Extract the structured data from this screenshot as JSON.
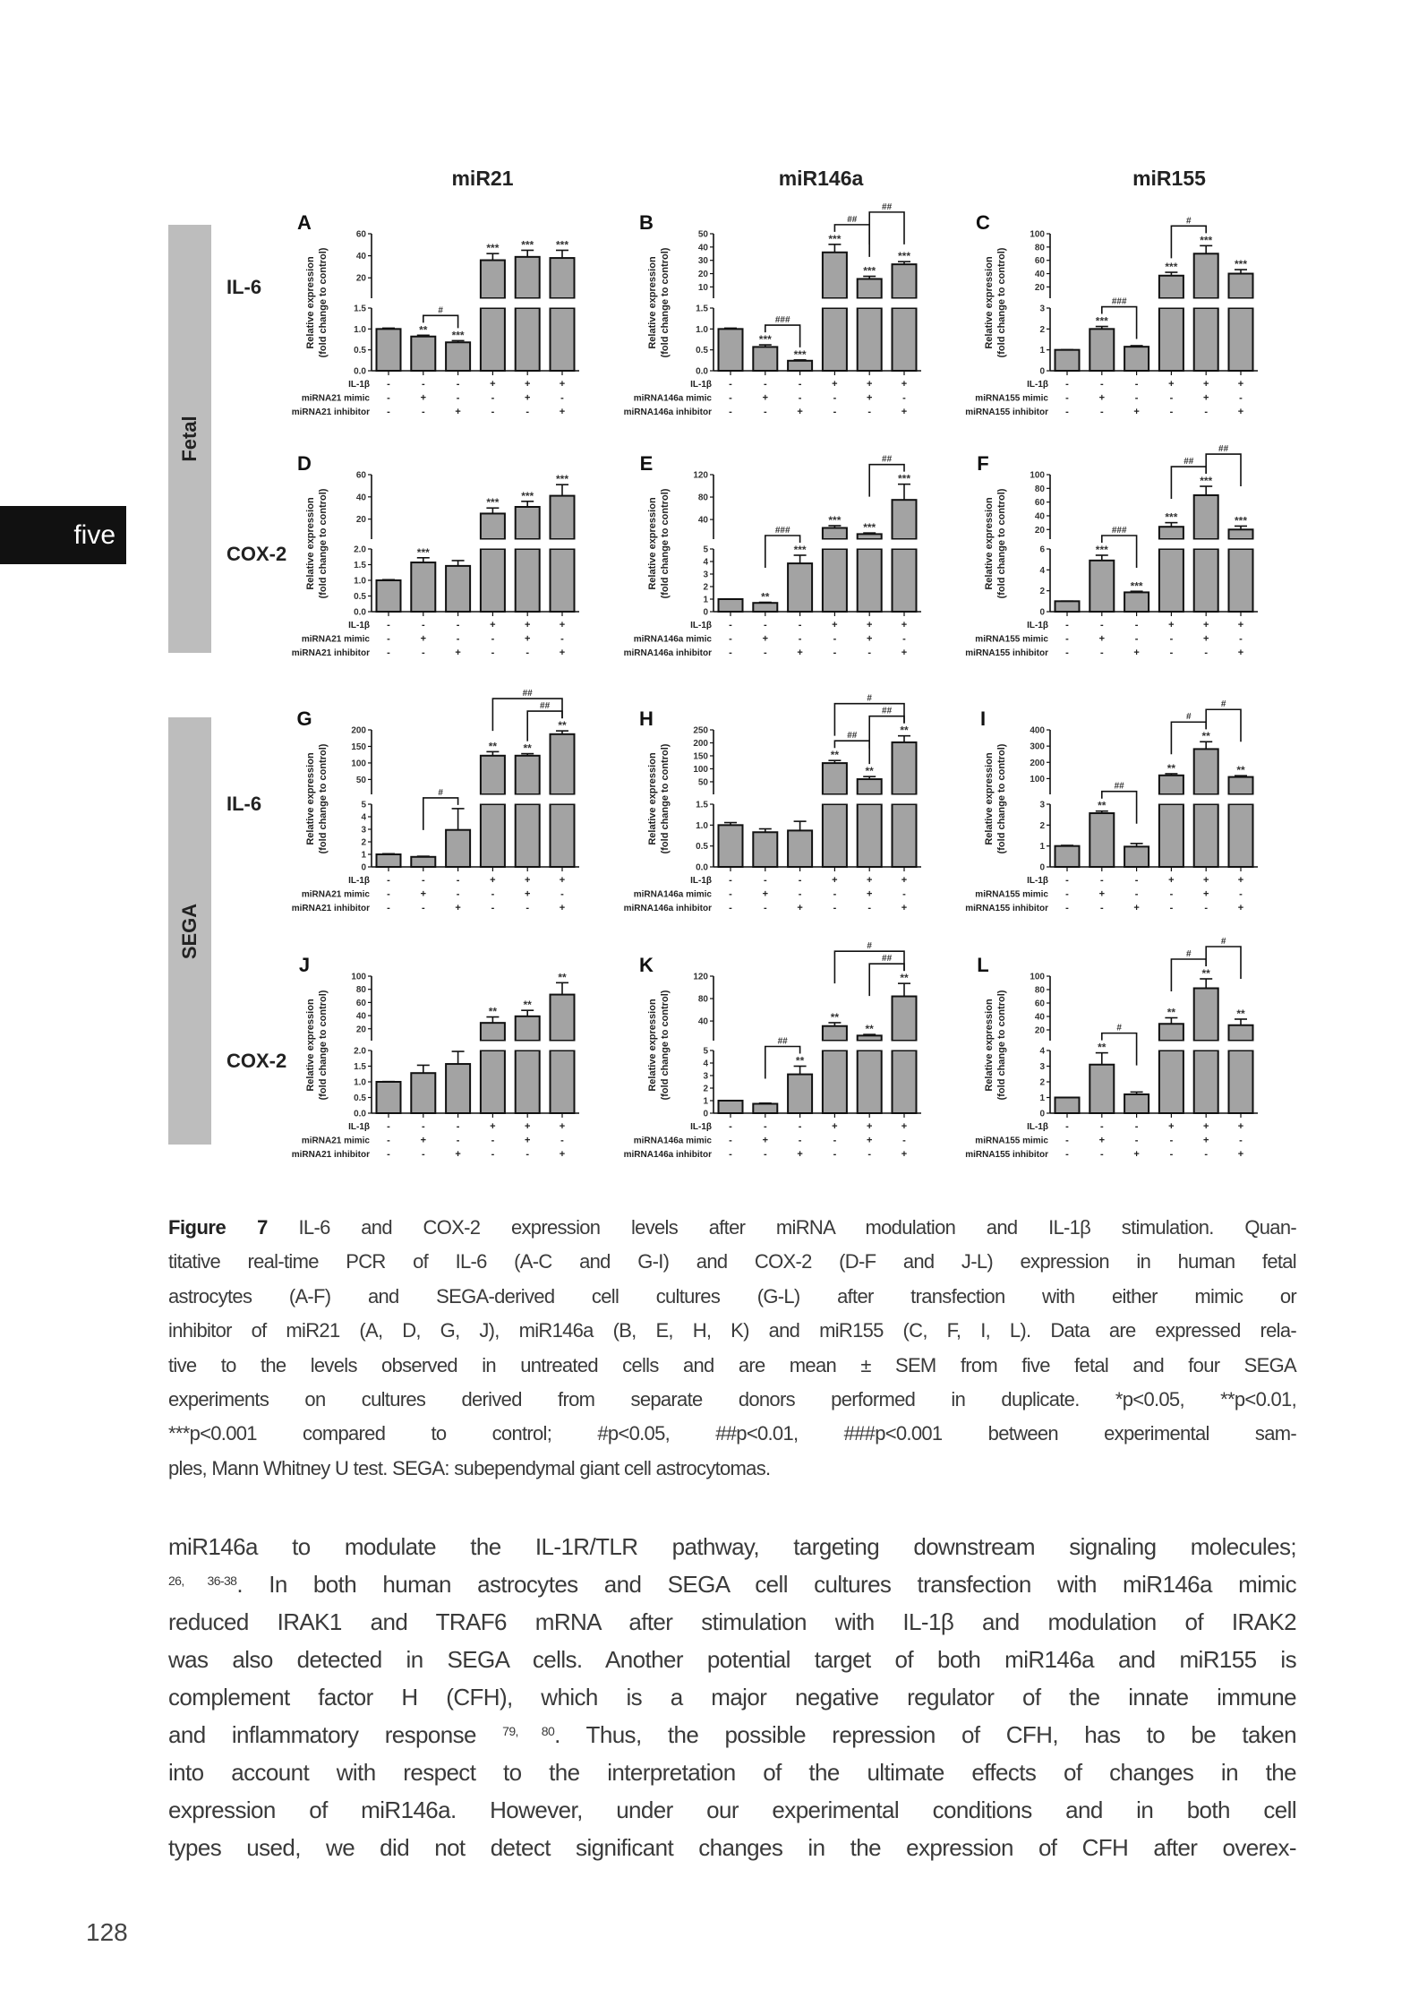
{
  "chapter_tab": "five",
  "page_number": "128",
  "figure": {
    "column_titles": [
      "miR21",
      "miR146a",
      "miR155"
    ],
    "group_labels": [
      "Fetal",
      "SEGA"
    ],
    "row_labels": [
      "IL-6",
      "COX-2",
      "IL-6",
      "COX-2"
    ],
    "ylabel_line1": "Relative expression",
    "ylabel_line2": "(fold change to control)"
  },
  "chart_data": [
    {
      "type": "bar",
      "panel": "A",
      "lower_ticks": [
        "0.0",
        "0.5",
        "1.0",
        "1.5"
      ],
      "upper_ticks": [
        "20",
        "40",
        "60"
      ],
      "values": [
        1.0,
        0.82,
        0.68,
        36,
        39,
        38
      ],
      "errors": [
        0.02,
        0.03,
        0.04,
        6,
        6,
        7
      ],
      "significance": [
        "",
        "**",
        "***",
        "***",
        "***",
        "***"
      ],
      "brackets": [
        {
          "from": 1,
          "to": 2,
          "label": "#"
        }
      ],
      "treatments": [
        {
          "label": "IL-1β",
          "signs": [
            "-",
            "-",
            "-",
            "+",
            "+",
            "+"
          ]
        },
        {
          "label": "miRNA21 mimic",
          "signs": [
            "-",
            "+",
            "-",
            "-",
            "+",
            "-"
          ]
        },
        {
          "label": "miRNA21 inhibitor",
          "signs": [
            "-",
            "-",
            "+",
            "-",
            "-",
            "+"
          ]
        }
      ]
    },
    {
      "type": "bar",
      "panel": "B",
      "lower_ticks": [
        "0.0",
        "0.5",
        "1.0",
        "1.5"
      ],
      "upper_ticks": [
        "10",
        "20",
        "30",
        "40",
        "50"
      ],
      "values": [
        1.0,
        0.57,
        0.24,
        36,
        16,
        27
      ],
      "errors": [
        0.02,
        0.05,
        0.02,
        6,
        2,
        2
      ],
      "significance": [
        "",
        "***",
        "***",
        "***",
        "***",
        "***"
      ],
      "brackets": [
        {
          "from": 1,
          "to": 2,
          "label": "###"
        },
        {
          "from": 3,
          "to": 4,
          "label": "##"
        },
        {
          "from": 4,
          "to": 5,
          "label": "##"
        }
      ],
      "treatments": [
        {
          "label": "IL-1β",
          "signs": [
            "-",
            "-",
            "-",
            "+",
            "+",
            "+"
          ]
        },
        {
          "label": "miRNA146a mimic",
          "signs": [
            "-",
            "+",
            "-",
            "-",
            "+",
            "-"
          ]
        },
        {
          "label": "miRNA146a inhibitor",
          "signs": [
            "-",
            "-",
            "+",
            "-",
            "-",
            "+"
          ]
        }
      ]
    },
    {
      "type": "bar",
      "panel": "C",
      "lower_ticks": [
        "0",
        "1",
        "2",
        "3"
      ],
      "upper_ticks": [
        "20",
        "40",
        "60",
        "80",
        "100"
      ],
      "values": [
        1.0,
        2.0,
        1.15,
        37,
        70,
        40
      ],
      "errors": [
        0.01,
        0.12,
        0.05,
        5,
        12,
        6
      ],
      "significance": [
        "",
        "***",
        "",
        "***",
        "***",
        "***"
      ],
      "brackets": [
        {
          "from": 1,
          "to": 2,
          "label": "###"
        },
        {
          "from": 3,
          "to": 4,
          "label": "#"
        }
      ],
      "treatments": [
        {
          "label": "IL-1β",
          "signs": [
            "-",
            "-",
            "-",
            "+",
            "+",
            "+"
          ]
        },
        {
          "label": "miRNA155 mimic",
          "signs": [
            "-",
            "+",
            "-",
            "-",
            "+",
            "-"
          ]
        },
        {
          "label": "miRNA155 inhibitor",
          "signs": [
            "-",
            "-",
            "+",
            "-",
            "-",
            "+"
          ]
        }
      ]
    },
    {
      "type": "bar",
      "panel": "D",
      "lower_ticks": [
        "0.0",
        "0.5",
        "1.0",
        "1.5",
        "2.0"
      ],
      "upper_ticks": [
        "20",
        "40",
        "60"
      ],
      "values": [
        1.0,
        1.57,
        1.46,
        25,
        31,
        41
      ],
      "errors": [
        0.02,
        0.15,
        0.17,
        5,
        5,
        10
      ],
      "significance": [
        "",
        "***",
        "",
        "***",
        "***",
        "***"
      ],
      "brackets": [],
      "treatments": [
        {
          "label": "IL-1β",
          "signs": [
            "-",
            "-",
            "-",
            "+",
            "+",
            "+"
          ]
        },
        {
          "label": "miRNA21 mimic",
          "signs": [
            "-",
            "+",
            "-",
            "-",
            "+",
            "-"
          ]
        },
        {
          "label": "miRNA21 inhibitor",
          "signs": [
            "-",
            "-",
            "+",
            "-",
            "-",
            "+"
          ]
        }
      ]
    },
    {
      "type": "bar",
      "panel": "E",
      "lower_ticks": [
        "0",
        "1",
        "2",
        "3",
        "4",
        "5"
      ],
      "upper_ticks": [
        "40",
        "80",
        "120"
      ],
      "values": [
        1.0,
        0.7,
        3.85,
        25,
        14,
        75
      ],
      "errors": [
        0.01,
        0.05,
        0.65,
        4,
        2,
        28
      ],
      "significance": [
        "",
        "**",
        "***",
        "***",
        "***",
        "***"
      ],
      "brackets": [
        {
          "from": 1,
          "to": 2,
          "label": "###"
        },
        {
          "from": 4,
          "to": 5,
          "label": "##"
        }
      ],
      "treatments": [
        {
          "label": "IL-1β",
          "signs": [
            "-",
            "-",
            "-",
            "+",
            "+",
            "+"
          ]
        },
        {
          "label": "miRNA146a mimic",
          "signs": [
            "-",
            "+",
            "-",
            "-",
            "+",
            "-"
          ]
        },
        {
          "label": "miRNA146a inhibitor",
          "signs": [
            "-",
            "-",
            "+",
            "-",
            "-",
            "+"
          ]
        }
      ]
    },
    {
      "type": "bar",
      "panel": "F",
      "lower_ticks": [
        "0",
        "2",
        "4",
        "6"
      ],
      "upper_ticks": [
        "20",
        "40",
        "60",
        "80",
        "100"
      ],
      "values": [
        1.0,
        4.9,
        1.85,
        24,
        70,
        20
      ],
      "errors": [
        0.01,
        0.5,
        0.1,
        6,
        13,
        5
      ],
      "significance": [
        "",
        "***",
        "***",
        "***",
        "***",
        "***"
      ],
      "brackets": [
        {
          "from": 1,
          "to": 2,
          "label": "###"
        },
        {
          "from": 3,
          "to": 4,
          "label": "##"
        },
        {
          "from": 4,
          "to": 5,
          "label": "##"
        }
      ],
      "treatments": [
        {
          "label": "IL-1β",
          "signs": [
            "-",
            "-",
            "-",
            "+",
            "+",
            "+"
          ]
        },
        {
          "label": "miRNA155 mimic",
          "signs": [
            "-",
            "+",
            "-",
            "-",
            "+",
            "-"
          ]
        },
        {
          "label": "miRNA155 inhibitor",
          "signs": [
            "-",
            "-",
            "+",
            "-",
            "-",
            "+"
          ]
        }
      ]
    },
    {
      "type": "bar",
      "panel": "G",
      "lower_ticks": [
        "0",
        "1",
        "2",
        "3",
        "4",
        "5"
      ],
      "upper_ticks": [
        "50",
        "100",
        "150",
        "200"
      ],
      "values": [
        1.0,
        0.8,
        2.95,
        122,
        122,
        187
      ],
      "errors": [
        0.05,
        0.05,
        1.7,
        12,
        6,
        10
      ],
      "significance": [
        "",
        "",
        "",
        "**",
        "**",
        "**"
      ],
      "brackets": [
        {
          "from": 1,
          "to": 2,
          "label": "#"
        },
        {
          "from": 4,
          "to": 5,
          "label": "##"
        },
        {
          "from": 3,
          "to": 5,
          "label": "##"
        }
      ],
      "treatments": [
        {
          "label": "IL-1β",
          "signs": [
            "-",
            "-",
            "-",
            "+",
            "+",
            "+"
          ]
        },
        {
          "label": "miRNA21 mimic",
          "signs": [
            "-",
            "+",
            "-",
            "-",
            "+",
            "-"
          ]
        },
        {
          "label": "miRNA21 inhibitor",
          "signs": [
            "-",
            "-",
            "+",
            "-",
            "-",
            "+"
          ]
        }
      ]
    },
    {
      "type": "bar",
      "panel": "H",
      "lower_ticks": [
        "0.0",
        "0.5",
        "1.0",
        "1.5"
      ],
      "upper_ticks": [
        "50",
        "100",
        "150",
        "200",
        "250"
      ],
      "values": [
        1.0,
        0.83,
        0.87,
        122,
        60,
        202
      ],
      "errors": [
        0.06,
        0.08,
        0.22,
        10,
        10,
        25
      ],
      "significance": [
        "",
        "",
        "",
        "**",
        "**",
        "**"
      ],
      "brackets": [
        {
          "from": 3,
          "to": 4,
          "label": "##"
        },
        {
          "from": 4,
          "to": 5,
          "label": "##"
        },
        {
          "from": 3,
          "to": 5,
          "label": "#"
        }
      ],
      "treatments": [
        {
          "label": "IL-1β",
          "signs": [
            "-",
            "-",
            "-",
            "+",
            "+",
            "+"
          ]
        },
        {
          "label": "miRNA146a mimic",
          "signs": [
            "-",
            "+",
            "-",
            "-",
            "+",
            "-"
          ]
        },
        {
          "label": "miRNA146a inhibitor",
          "signs": [
            "-",
            "-",
            "+",
            "-",
            "-",
            "+"
          ]
        }
      ]
    },
    {
      "type": "bar",
      "panel": "I",
      "lower_ticks": [
        "0",
        "1",
        "2",
        "3"
      ],
      "upper_ticks": [
        "100",
        "200",
        "300",
        "400"
      ],
      "values": [
        1.0,
        2.57,
        0.97,
        120,
        282,
        110
      ],
      "errors": [
        0.03,
        0.1,
        0.15,
        10,
        45,
        8
      ],
      "significance": [
        "",
        "**",
        "",
        "**",
        "**",
        "**"
      ],
      "brackets": [
        {
          "from": 1,
          "to": 2,
          "label": "##"
        },
        {
          "from": 3,
          "to": 4,
          "label": "#"
        },
        {
          "from": 4,
          "to": 5,
          "label": "#"
        }
      ],
      "treatments": [
        {
          "label": "IL-1β",
          "signs": [
            "-",
            "-",
            "-",
            "+",
            "+",
            "+"
          ]
        },
        {
          "label": "miRNA155 mimic",
          "signs": [
            "-",
            "+",
            "-",
            "-",
            "+",
            "-"
          ]
        },
        {
          "label": "miRNA155 inhibitor",
          "signs": [
            "-",
            "-",
            "+",
            "-",
            "-",
            "+"
          ]
        }
      ]
    },
    {
      "type": "bar",
      "panel": "J",
      "lower_ticks": [
        "0.0",
        "0.5",
        "1.0",
        "1.5",
        "2.0"
      ],
      "upper_ticks": [
        "20",
        "40",
        "60",
        "80",
        "100"
      ],
      "values": [
        1.0,
        1.28,
        1.57,
        29,
        39,
        72
      ],
      "errors": [
        0.01,
        0.25,
        0.4,
        9,
        9,
        18
      ],
      "significance": [
        "",
        "",
        "",
        "**",
        "**",
        "**"
      ],
      "brackets": [],
      "treatments": [
        {
          "label": "IL-1β",
          "signs": [
            "-",
            "-",
            "-",
            "+",
            "+",
            "+"
          ]
        },
        {
          "label": "miRNA21 mimic",
          "signs": [
            "-",
            "+",
            "-",
            "-",
            "+",
            "-"
          ]
        },
        {
          "label": "miRNA21 inhibitor",
          "signs": [
            "-",
            "-",
            "+",
            "-",
            "-",
            "+"
          ]
        }
      ]
    },
    {
      "type": "bar",
      "panel": "K",
      "lower_ticks": [
        "0",
        "1",
        "2",
        "3",
        "4",
        "5"
      ],
      "upper_ticks": [
        "40",
        "80",
        "120"
      ],
      "values": [
        1.0,
        0.75,
        3.1,
        31,
        14,
        84
      ],
      "errors": [
        0.01,
        0.05,
        0.65,
        6,
        2,
        23
      ],
      "significance": [
        "",
        "",
        "**",
        "**",
        "**",
        "**"
      ],
      "brackets": [
        {
          "from": 1,
          "to": 2,
          "label": "##"
        },
        {
          "from": 4,
          "to": 5,
          "label": "##"
        },
        {
          "from": 3,
          "to": 5,
          "label": "#"
        }
      ],
      "treatments": [
        {
          "label": "IL-1β",
          "signs": [
            "-",
            "-",
            "-",
            "+",
            "+",
            "+"
          ]
        },
        {
          "label": "miRNA146a mimic",
          "signs": [
            "-",
            "+",
            "-",
            "-",
            "+",
            "-"
          ]
        },
        {
          "label": "miRNA146a inhibitor",
          "signs": [
            "-",
            "-",
            "+",
            "-",
            "-",
            "+"
          ]
        }
      ]
    },
    {
      "type": "bar",
      "panel": "L",
      "lower_ticks": [
        "0",
        "1",
        "2",
        "3",
        "4"
      ],
      "upper_ticks": [
        "20",
        "40",
        "60",
        "80",
        "100"
      ],
      "values": [
        1.0,
        3.1,
        1.2,
        29,
        82,
        27
      ],
      "errors": [
        0.01,
        0.75,
        0.15,
        9,
        14,
        9
      ],
      "significance": [
        "",
        "**",
        "",
        "**",
        "**",
        "**"
      ],
      "brackets": [
        {
          "from": 1,
          "to": 2,
          "label": "#"
        },
        {
          "from": 3,
          "to": 4,
          "label": "#"
        },
        {
          "from": 4,
          "to": 5,
          "label": "#"
        }
      ],
      "treatments": [
        {
          "label": "IL-1β",
          "signs": [
            "-",
            "-",
            "-",
            "+",
            "+",
            "+"
          ]
        },
        {
          "label": "miRNA155 mimic",
          "signs": [
            "-",
            "+",
            "-",
            "-",
            "+",
            "-"
          ]
        },
        {
          "label": "miRNA155 inhibitor",
          "signs": [
            "-",
            "-",
            "+",
            "-",
            "-",
            "+"
          ]
        }
      ]
    }
  ],
  "caption": {
    "label": "Figure 7",
    "lines": [
      " IL-6 and COX-2 expression levels after miRNA modulation and IL-1β stimulation. Quan-",
      "titative real-time PCR of IL-6 (A-C and G-I) and COX-2 (D-F and J-L) expression in human fetal",
      "astrocytes (A-F) and SEGA-derived cell cultures (G-L) after transfection with either mimic or",
      "inhibitor of miR21 (A, D, G, J), miR146a (B, E, H, K) and miR155 (C, F, I, L). Data are expressed rela-",
      "tive to the levels observed in untreated cells and are mean ± SEM from five fetal and four SEGA",
      "experiments on cultures derived from separate donors performed in duplicate. *p<0.05, **p<0.01,",
      "***p<0.001 compared to control; #p<0.05, ##p<0.01, ###p<0.001 between experimental sam-",
      "ples, Mann Whitney U test. SEGA: subependymal giant cell astrocytomas."
    ]
  },
  "body": {
    "lines": [
      {
        "pre": "miR146a to modulate the IL-1R/TLR pathway, targeting downstream signaling molecules;",
        "sup": "",
        "post": ""
      },
      {
        "pre": "",
        "sup": "26, 36-38",
        "post": ". In both human astrocytes and SEGA cell cultures transfection with miR146a mimic"
      },
      {
        "pre": "reduced IRAK1 and TRAF6 mRNA after stimulation with IL-1β and modulation of IRAK2",
        "sup": "",
        "post": ""
      },
      {
        "pre": "was also detected in SEGA cells. Another potential target of both miR146a and miR155 is",
        "sup": "",
        "post": ""
      },
      {
        "pre": "complement factor H (CFH), which is a major negative regulator of the innate immune",
        "sup": "",
        "post": ""
      },
      {
        "pre": "and inflammatory response ",
        "sup": "79, 80",
        "post": ". Thus, the possible repression of CFH, has to be taken"
      },
      {
        "pre": "into account with respect to the interpretation of the ultimate effects of changes in the",
        "sup": "",
        "post": ""
      },
      {
        "pre": "expression of miR146a. However, under our experimental conditions and in both cell",
        "sup": "",
        "post": ""
      },
      {
        "pre": "types used, we did not detect significant changes in the expression of CFH after overex-",
        "sup": "",
        "post": ""
      }
    ]
  }
}
